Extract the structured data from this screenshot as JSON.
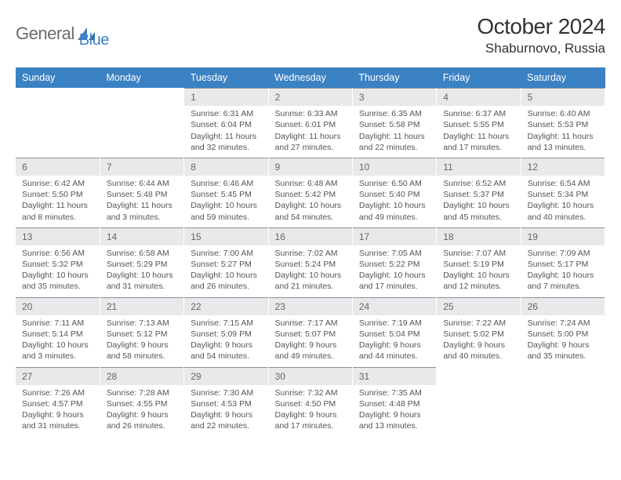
{
  "logo": {
    "text_part1": "General",
    "text_part2": "Blue"
  },
  "title": "October 2024",
  "location": "Shaburnovo, Russia",
  "colors": {
    "header_bg": "#3b82c4",
    "header_text": "#ffffff",
    "daynum_bg": "#e7e9eb",
    "daynum_border": "#8a9096",
    "body_text": "#555555",
    "page_bg": "#ffffff"
  },
  "weekdays": [
    "Sunday",
    "Monday",
    "Tuesday",
    "Wednesday",
    "Thursday",
    "Friday",
    "Saturday"
  ],
  "weeks": [
    [
      null,
      null,
      {
        "n": "1",
        "sr": "Sunrise: 6:31 AM",
        "ss": "Sunset: 6:04 PM",
        "dl": "Daylight: 11 hours and 32 minutes."
      },
      {
        "n": "2",
        "sr": "Sunrise: 6:33 AM",
        "ss": "Sunset: 6:01 PM",
        "dl": "Daylight: 11 hours and 27 minutes."
      },
      {
        "n": "3",
        "sr": "Sunrise: 6:35 AM",
        "ss": "Sunset: 5:58 PM",
        "dl": "Daylight: 11 hours and 22 minutes."
      },
      {
        "n": "4",
        "sr": "Sunrise: 6:37 AM",
        "ss": "Sunset: 5:55 PM",
        "dl": "Daylight: 11 hours and 17 minutes."
      },
      {
        "n": "5",
        "sr": "Sunrise: 6:40 AM",
        "ss": "Sunset: 5:53 PM",
        "dl": "Daylight: 11 hours and 13 minutes."
      }
    ],
    [
      {
        "n": "6",
        "sr": "Sunrise: 6:42 AM",
        "ss": "Sunset: 5:50 PM",
        "dl": "Daylight: 11 hours and 8 minutes."
      },
      {
        "n": "7",
        "sr": "Sunrise: 6:44 AM",
        "ss": "Sunset: 5:48 PM",
        "dl": "Daylight: 11 hours and 3 minutes."
      },
      {
        "n": "8",
        "sr": "Sunrise: 6:46 AM",
        "ss": "Sunset: 5:45 PM",
        "dl": "Daylight: 10 hours and 59 minutes."
      },
      {
        "n": "9",
        "sr": "Sunrise: 6:48 AM",
        "ss": "Sunset: 5:42 PM",
        "dl": "Daylight: 10 hours and 54 minutes."
      },
      {
        "n": "10",
        "sr": "Sunrise: 6:50 AM",
        "ss": "Sunset: 5:40 PM",
        "dl": "Daylight: 10 hours and 49 minutes."
      },
      {
        "n": "11",
        "sr": "Sunrise: 6:52 AM",
        "ss": "Sunset: 5:37 PM",
        "dl": "Daylight: 10 hours and 45 minutes."
      },
      {
        "n": "12",
        "sr": "Sunrise: 6:54 AM",
        "ss": "Sunset: 5:34 PM",
        "dl": "Daylight: 10 hours and 40 minutes."
      }
    ],
    [
      {
        "n": "13",
        "sr": "Sunrise: 6:56 AM",
        "ss": "Sunset: 5:32 PM",
        "dl": "Daylight: 10 hours and 35 minutes."
      },
      {
        "n": "14",
        "sr": "Sunrise: 6:58 AM",
        "ss": "Sunset: 5:29 PM",
        "dl": "Daylight: 10 hours and 31 minutes."
      },
      {
        "n": "15",
        "sr": "Sunrise: 7:00 AM",
        "ss": "Sunset: 5:27 PM",
        "dl": "Daylight: 10 hours and 26 minutes."
      },
      {
        "n": "16",
        "sr": "Sunrise: 7:02 AM",
        "ss": "Sunset: 5:24 PM",
        "dl": "Daylight: 10 hours and 21 minutes."
      },
      {
        "n": "17",
        "sr": "Sunrise: 7:05 AM",
        "ss": "Sunset: 5:22 PM",
        "dl": "Daylight: 10 hours and 17 minutes."
      },
      {
        "n": "18",
        "sr": "Sunrise: 7:07 AM",
        "ss": "Sunset: 5:19 PM",
        "dl": "Daylight: 10 hours and 12 minutes."
      },
      {
        "n": "19",
        "sr": "Sunrise: 7:09 AM",
        "ss": "Sunset: 5:17 PM",
        "dl": "Daylight: 10 hours and 7 minutes."
      }
    ],
    [
      {
        "n": "20",
        "sr": "Sunrise: 7:11 AM",
        "ss": "Sunset: 5:14 PM",
        "dl": "Daylight: 10 hours and 3 minutes."
      },
      {
        "n": "21",
        "sr": "Sunrise: 7:13 AM",
        "ss": "Sunset: 5:12 PM",
        "dl": "Daylight: 9 hours and 58 minutes."
      },
      {
        "n": "22",
        "sr": "Sunrise: 7:15 AM",
        "ss": "Sunset: 5:09 PM",
        "dl": "Daylight: 9 hours and 54 minutes."
      },
      {
        "n": "23",
        "sr": "Sunrise: 7:17 AM",
        "ss": "Sunset: 5:07 PM",
        "dl": "Daylight: 9 hours and 49 minutes."
      },
      {
        "n": "24",
        "sr": "Sunrise: 7:19 AM",
        "ss": "Sunset: 5:04 PM",
        "dl": "Daylight: 9 hours and 44 minutes."
      },
      {
        "n": "25",
        "sr": "Sunrise: 7:22 AM",
        "ss": "Sunset: 5:02 PM",
        "dl": "Daylight: 9 hours and 40 minutes."
      },
      {
        "n": "26",
        "sr": "Sunrise: 7:24 AM",
        "ss": "Sunset: 5:00 PM",
        "dl": "Daylight: 9 hours and 35 minutes."
      }
    ],
    [
      {
        "n": "27",
        "sr": "Sunrise: 7:26 AM",
        "ss": "Sunset: 4:57 PM",
        "dl": "Daylight: 9 hours and 31 minutes."
      },
      {
        "n": "28",
        "sr": "Sunrise: 7:28 AM",
        "ss": "Sunset: 4:55 PM",
        "dl": "Daylight: 9 hours and 26 minutes."
      },
      {
        "n": "29",
        "sr": "Sunrise: 7:30 AM",
        "ss": "Sunset: 4:53 PM",
        "dl": "Daylight: 9 hours and 22 minutes."
      },
      {
        "n": "30",
        "sr": "Sunrise: 7:32 AM",
        "ss": "Sunset: 4:50 PM",
        "dl": "Daylight: 9 hours and 17 minutes."
      },
      {
        "n": "31",
        "sr": "Sunrise: 7:35 AM",
        "ss": "Sunset: 4:48 PM",
        "dl": "Daylight: 9 hours and 13 minutes."
      },
      null,
      null
    ]
  ]
}
